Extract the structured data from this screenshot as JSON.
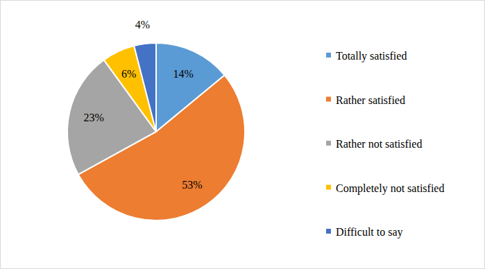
{
  "chart_data": {
    "type": "pie",
    "categories": [
      "Totally satisfied",
      "Rather satisfied",
      "Rather not satisfied",
      "Completely not satisfied",
      "Difficult to say"
    ],
    "values": [
      14,
      53,
      23,
      6,
      4
    ],
    "value_labels": [
      "14%",
      "53%",
      "23%",
      "6%",
      "4%"
    ],
    "colors": [
      "#5b9bd5",
      "#ed7d31",
      "#a5a5a5",
      "#ffc000",
      "#4472c4"
    ],
    "data_labels": true,
    "legend": "right"
  }
}
